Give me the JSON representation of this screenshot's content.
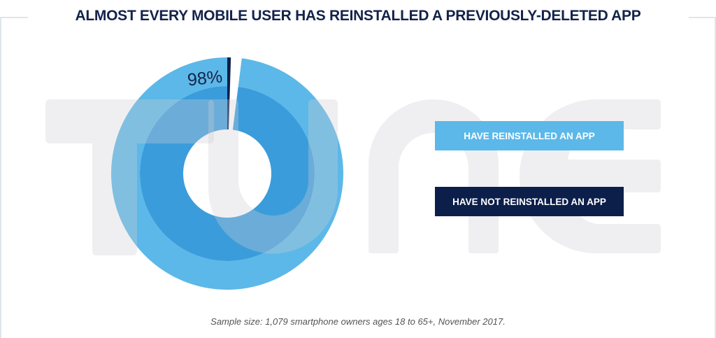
{
  "title": "ALMOST EVERY MOBILE USER HAS REINSTALLED A PREVIOUSLY-DELETED APP",
  "footer": "Sample size: 1,079 smartphone owners ages 18 to 65+, November 2017.",
  "watermark": "TUNE",
  "colors": {
    "reinstalled": "#5cb8e8",
    "reinstalled_inner": "#3b9cdb",
    "not_reinstalled": "#0c1f4a",
    "title": "#13234a"
  },
  "chart_data": {
    "type": "pie",
    "donut": true,
    "title": "ALMOST EVERY MOBILE USER HAS REINSTALLED A PREVIOUSLY-DELETED APP",
    "categories": [
      "HAVE REINSTALLED AN APP",
      "HAVE NOT REINSTALLED AN APP"
    ],
    "values": [
      98,
      2
    ],
    "data_labels": [
      "98%"
    ],
    "legend": {
      "position": "right",
      "entries": [
        "HAVE REINSTALLED AN APP",
        "HAVE NOT REINSTALLED AN APP"
      ]
    }
  }
}
